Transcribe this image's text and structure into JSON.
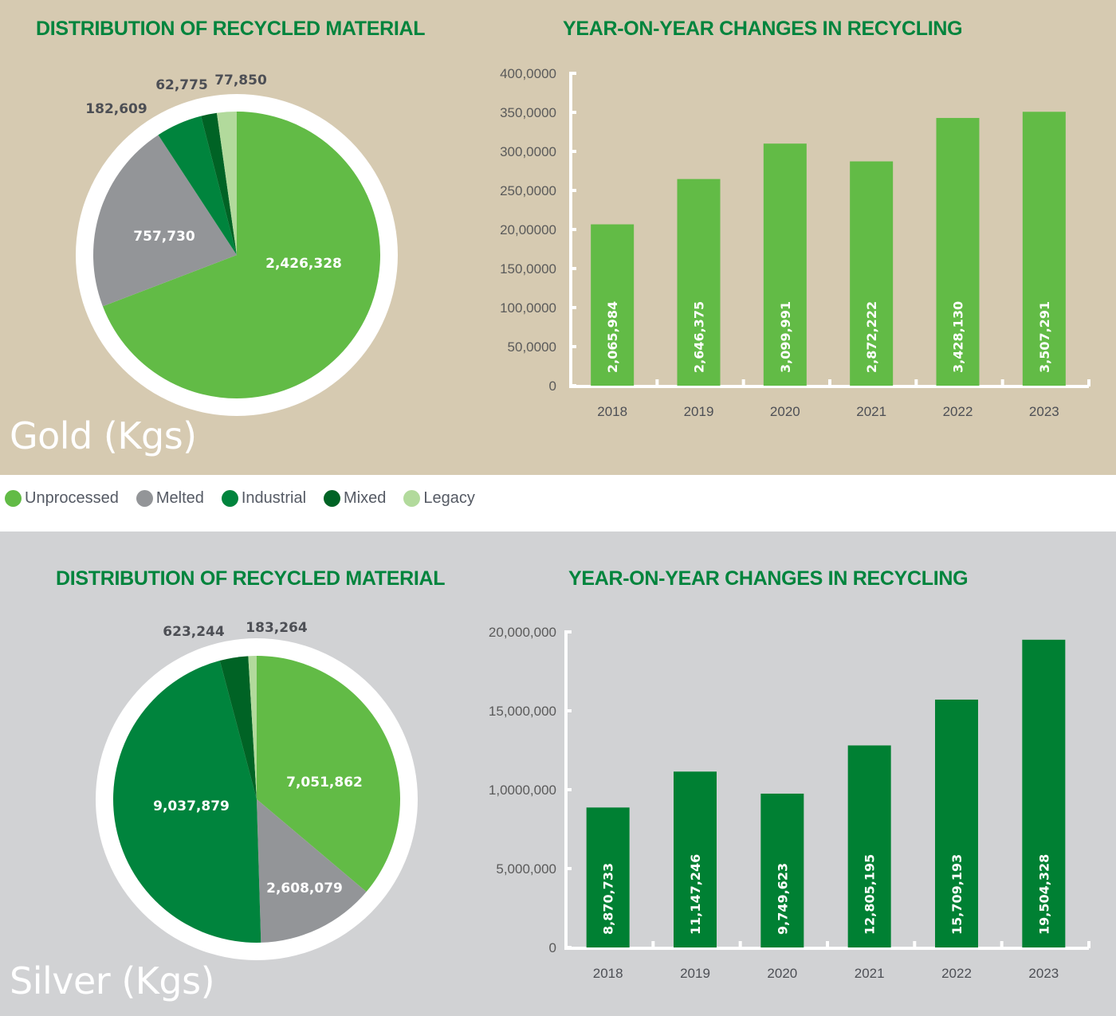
{
  "colors": {
    "unprocessed": "#62BB46",
    "melted": "#939598",
    "industrial": "#00843D",
    "mixed": "#006325",
    "legacy": "#B2DA9C",
    "title_green": "#00843D",
    "gold_bar": "#62BB46",
    "silver_bar": "#008033",
    "gold_bg": "#D6CAB1",
    "silver_bg": "#D1D2D4"
  },
  "legend": [
    {
      "label": "Unprocessed",
      "key": "unprocessed"
    },
    {
      "label": "Melted",
      "key": "melted"
    },
    {
      "label": "Industrial",
      "key": "industrial"
    },
    {
      "label": "Mixed",
      "key": "mixed"
    },
    {
      "label": "Legacy",
      "key": "legacy"
    }
  ],
  "gold": {
    "label": "Gold (Kgs)",
    "pie_title": "DISTRIBUTION OF RECYCLED MATERIAL",
    "bar_title": "YEAR-ON-YEAR CHANGES IN RECYCLING"
  },
  "silver": {
    "label": "Silver (Kgs)",
    "pie_title": "DISTRIBUTION OF RECYCLED MATERIAL",
    "bar_title": "YEAR-ON-YEAR CHANGES IN RECYCLING"
  },
  "chart_data": [
    {
      "type": "pie",
      "id": "gold-pie",
      "title": "DISTRIBUTION OF RECYCLED MATERIAL",
      "subtitle": "Gold (Kgs)",
      "categories": [
        "Unprocessed",
        "Melted",
        "Industrial",
        "Mixed",
        "Legacy"
      ],
      "values": [
        2426328,
        757730,
        182609,
        62775,
        77850
      ],
      "labels": [
        "2,426,328",
        "757,730",
        "182,609",
        "62,775",
        "77,850"
      ]
    },
    {
      "type": "bar",
      "id": "gold-bar",
      "title": "YEAR-ON-YEAR CHANGES IN RECYCLING",
      "subtitle": "Gold (Kgs)",
      "categories": [
        "2018",
        "2019",
        "2020",
        "2021",
        "2022",
        "2023"
      ],
      "values": [
        2065984,
        2646375,
        3099991,
        2872222,
        3428130,
        3507291
      ],
      "labels": [
        "2,065,984",
        "2,646,375",
        "3,099,991",
        "2,872,222",
        "3,428,130",
        "3,507,291"
      ],
      "ytick_labels": [
        "0",
        "50,0000",
        "100,0000",
        "150,0000",
        "20,00000",
        "250,0000",
        "300,0000",
        "350,0000",
        "400,0000"
      ],
      "ylim": [
        0,
        4000000
      ],
      "xlabel": "",
      "ylabel": "",
      "grid": false
    },
    {
      "type": "pie",
      "id": "silver-pie",
      "title": "DISTRIBUTION OF RECYCLED MATERIAL",
      "subtitle": "Silver (Kgs)",
      "categories": [
        "Unprocessed",
        "Melted",
        "Industrial",
        "Mixed",
        "Legacy"
      ],
      "values": [
        7051862,
        2608079,
        9037879,
        623244,
        183264
      ],
      "labels": [
        "7,051,862",
        "2,608,079",
        "9,037,879",
        "623,244",
        "183,264"
      ]
    },
    {
      "type": "bar",
      "id": "silver-bar",
      "title": "YEAR-ON-YEAR CHANGES IN RECYCLING",
      "subtitle": "Silver (Kgs)",
      "categories": [
        "2018",
        "2019",
        "2020",
        "2021",
        "2022",
        "2023"
      ],
      "values": [
        8870733,
        11147246,
        9749623,
        12805195,
        15709193,
        19504328
      ],
      "labels": [
        "8,870,733",
        "11,147,246",
        "9,749,623",
        "12,805,195",
        "15,709,193",
        "19,504,328"
      ],
      "ytick_labels": [
        "0",
        "5,000,000",
        "1,0000,000",
        "15,000,000",
        "20,000,000"
      ],
      "ylim": [
        0,
        20000000
      ],
      "xlabel": "",
      "ylabel": "",
      "grid": false
    }
  ]
}
